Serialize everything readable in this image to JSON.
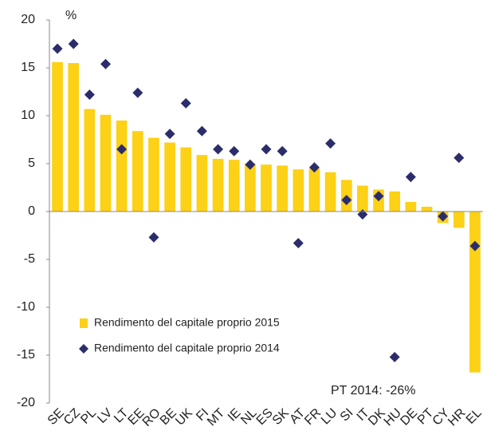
{
  "chart_data": {
    "type": "bar+scatter",
    "y_unit": "%",
    "categories": [
      "SE",
      "CZ",
      "PL",
      "LV",
      "LT",
      "EE",
      "RO",
      "BE",
      "UK",
      "FI",
      "MT",
      "IE",
      "NL",
      "ES",
      "SK",
      "AT",
      "FR",
      "LU",
      "SI",
      "IT",
      "DK",
      "HU",
      "DE",
      "PT",
      "CY",
      "HR",
      "EL"
    ],
    "series": [
      {
        "name": "Rendimento del capitale proprio 2015",
        "type": "bar",
        "color": "#fcd116",
        "values": [
          15.6,
          15.5,
          10.7,
          10.1,
          9.5,
          8.4,
          7.7,
          7.2,
          6.7,
          5.9,
          5.5,
          5.4,
          5.0,
          4.9,
          4.8,
          4.4,
          4.5,
          4.1,
          3.3,
          2.7,
          2.3,
          2.1,
          1.0,
          0.5,
          -1.2,
          -1.7,
          -16.8
        ]
      },
      {
        "name": "Rendimento del capitale proprio 2014",
        "type": "scatter",
        "color": "#2b2d6b",
        "values": [
          17.0,
          17.5,
          12.2,
          15.4,
          6.5,
          12.4,
          -2.7,
          8.1,
          11.3,
          8.4,
          6.5,
          6.3,
          4.9,
          6.5,
          6.3,
          -3.3,
          4.6,
          7.1,
          1.2,
          -0.3,
          1.6,
          -15.2,
          3.6,
          null,
          -0.5,
          5.6,
          -3.6
        ]
      }
    ],
    "annotation": "PT 2014: -26%",
    "ylim": [
      -20,
      20
    ],
    "yticks": [
      -20,
      -15,
      -10,
      -5,
      0,
      5,
      10,
      15,
      20
    ]
  }
}
